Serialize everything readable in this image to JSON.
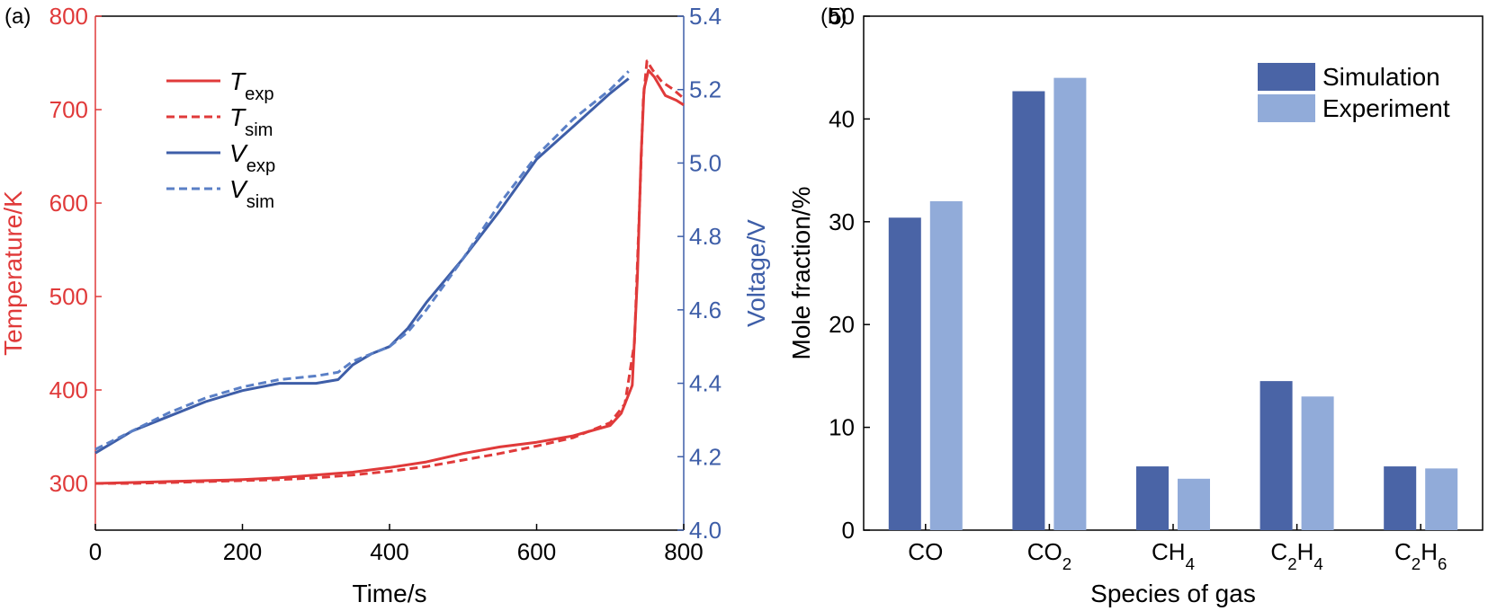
{
  "colors": {
    "temperature": "#e03a3a",
    "voltage": "#3e5ea8",
    "voltage_sim": "#5a7fc6",
    "simulation_bar": "#4a64a6",
    "experiment_bar": "#91abd9",
    "axis": "#000000"
  },
  "chart_data": [
    {
      "type": "line",
      "panel_label": "(a)",
      "xlabel": "Time/s",
      "ylabel_left": "Temperature/K",
      "ylabel_right": "Voltage/V",
      "xlim": [
        0,
        800
      ],
      "ylim_left": [
        250,
        800
      ],
      "ylim_right": [
        4.0,
        5.4
      ],
      "x_ticks": [
        "0",
        "200",
        "400",
        "600",
        "800"
      ],
      "y_ticks_left": [
        "300",
        "400",
        "500",
        "600",
        "700",
        "800"
      ],
      "y_ticks_right": [
        "4.0",
        "4.2",
        "4.4",
        "4.6",
        "4.8",
        "5.0",
        "5.2",
        "5.4"
      ],
      "legend_position": "top-left",
      "series": [
        {
          "name": "T",
          "subscript": "exp",
          "axis": "left",
          "style": "solid",
          "color_key": "temperature",
          "points": [
            [
              0,
              300
            ],
            [
              50,
              301
            ],
            [
              100,
              302
            ],
            [
              150,
              303
            ],
            [
              200,
              304
            ],
            [
              250,
              306
            ],
            [
              300,
              309
            ],
            [
              350,
              312
            ],
            [
              400,
              317
            ],
            [
              450,
              323
            ],
            [
              500,
              332
            ],
            [
              550,
              339
            ],
            [
              600,
              344
            ],
            [
              650,
              351
            ],
            [
              700,
              362
            ],
            [
              715,
              375
            ],
            [
              730,
              405
            ],
            [
              737,
              520
            ],
            [
              742,
              650
            ],
            [
              746,
              722
            ],
            [
              752,
              742
            ],
            [
              760,
              735
            ],
            [
              775,
              715
            ],
            [
              790,
              710
            ],
            [
              800,
              705
            ]
          ]
        },
        {
          "name": "T",
          "subscript": "sim",
          "axis": "left",
          "style": "dashed",
          "color_key": "temperature",
          "points": [
            [
              0,
              300
            ],
            [
              50,
              300
            ],
            [
              100,
              301
            ],
            [
              150,
              302
            ],
            [
              200,
              303
            ],
            [
              250,
              304
            ],
            [
              300,
              306
            ],
            [
              350,
              309
            ],
            [
              400,
              313
            ],
            [
              450,
              318
            ],
            [
              500,
              325
            ],
            [
              550,
              332
            ],
            [
              600,
              340
            ],
            [
              650,
              349
            ],
            [
              700,
              365
            ],
            [
              720,
              385
            ],
            [
              733,
              450
            ],
            [
              740,
              600
            ],
            [
              745,
              710
            ],
            [
              750,
              752
            ],
            [
              758,
              742
            ],
            [
              770,
              730
            ],
            [
              785,
              722
            ],
            [
              800,
              712
            ]
          ]
        },
        {
          "name": "V",
          "subscript": "exp",
          "axis": "right",
          "style": "solid",
          "color_key": "voltage",
          "points": [
            [
              0,
              4.21
            ],
            [
              50,
              4.27
            ],
            [
              100,
              4.31
            ],
            [
              150,
              4.35
            ],
            [
              200,
              4.38
            ],
            [
              250,
              4.4
            ],
            [
              300,
              4.4
            ],
            [
              330,
              4.41
            ],
            [
              350,
              4.45
            ],
            [
              375,
              4.48
            ],
            [
              400,
              4.5
            ],
            [
              425,
              4.55
            ],
            [
              450,
              4.62
            ],
            [
              500,
              4.74
            ],
            [
              550,
              4.87
            ],
            [
              600,
              5.01
            ],
            [
              650,
              5.1
            ],
            [
              700,
              5.19
            ],
            [
              725,
              5.23
            ]
          ]
        },
        {
          "name": "V",
          "subscript": "sim",
          "axis": "right",
          "style": "dashed",
          "color_key": "voltage_sim",
          "points": [
            [
              0,
              4.22
            ],
            [
              50,
              4.27
            ],
            [
              100,
              4.32
            ],
            [
              150,
              4.36
            ],
            [
              200,
              4.39
            ],
            [
              250,
              4.41
            ],
            [
              300,
              4.42
            ],
            [
              330,
              4.43
            ],
            [
              350,
              4.46
            ],
            [
              375,
              4.48
            ],
            [
              400,
              4.5
            ],
            [
              425,
              4.54
            ],
            [
              450,
              4.6
            ],
            [
              500,
              4.74
            ],
            [
              550,
              4.89
            ],
            [
              600,
              5.02
            ],
            [
              650,
              5.12
            ],
            [
              700,
              5.2
            ],
            [
              725,
              5.25
            ]
          ]
        }
      ]
    },
    {
      "type": "bar",
      "panel_label": "(b)",
      "xlabel": "Species of gas",
      "ylabel": "Mole fraction/%",
      "ylim": [
        0,
        50
      ],
      "y_ticks": [
        "0",
        "10",
        "20",
        "30",
        "40",
        "50"
      ],
      "categories": [
        {
          "base": "CO",
          "parts": [
            [
              "CO",
              ""
            ]
          ]
        },
        {
          "base": "CO2",
          "parts": [
            [
              "CO",
              "2"
            ]
          ]
        },
        {
          "base": "CH4",
          "parts": [
            [
              "CH",
              "4"
            ]
          ]
        },
        {
          "base": "C2H4",
          "parts": [
            [
              "C",
              "2"
            ],
            [
              "H",
              "4"
            ]
          ]
        },
        {
          "base": "C2H6",
          "parts": [
            [
              "C",
              "2"
            ],
            [
              "H",
              "6"
            ]
          ]
        }
      ],
      "legend_position": "top-right",
      "series": [
        {
          "name": "Simulation",
          "color_key": "simulation_bar",
          "values": [
            30.4,
            42.7,
            6.2,
            14.5,
            6.2
          ]
        },
        {
          "name": "Experiment",
          "color_key": "experiment_bar",
          "values": [
            32.0,
            44.0,
            5.0,
            13.0,
            6.0
          ]
        }
      ]
    }
  ]
}
